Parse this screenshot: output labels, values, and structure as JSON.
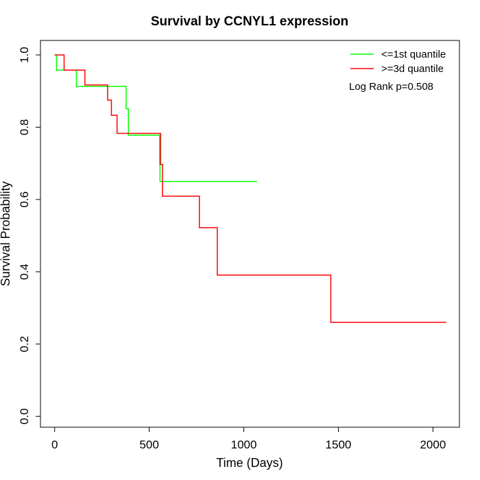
{
  "chart_data": {
    "type": "line",
    "title": "Survival by CCNYL1 expression",
    "xlabel": "Time (Days)",
    "ylabel": "Survival Probability",
    "xlim": [
      -75,
      2140
    ],
    "ylim": [
      -0.03,
      1.04
    ],
    "x_ticks": [
      0,
      500,
      1000,
      1500,
      2000
    ],
    "y_ticks": [
      0.0,
      0.2,
      0.4,
      0.6,
      0.8,
      1.0
    ],
    "x_tick_labels": [
      "0",
      "500",
      "1000",
      "1500",
      "2000"
    ],
    "y_tick_labels": [
      "0.0",
      "0.2",
      "0.4",
      "0.6",
      "0.8",
      "1.0"
    ],
    "grid": false,
    "legend_position": "top-right",
    "annotation": "Log Rank p=0.508",
    "series": [
      {
        "name": "<=1st quantile",
        "color": "#00ff00",
        "steps": [
          [
            0,
            1.0
          ],
          [
            10,
            0.958
          ],
          [
            115,
            0.913
          ],
          [
            375,
            0.913
          ],
          [
            378,
            0.851
          ],
          [
            390,
            0.778
          ],
          [
            553,
            0.778
          ],
          [
            555,
            0.697
          ],
          [
            557,
            0.65
          ],
          [
            1070,
            0.65
          ]
        ]
      },
      {
        "name": ">=3d quantile",
        "color": "#ff0000",
        "steps": [
          [
            0,
            1.0
          ],
          [
            50,
            0.958
          ],
          [
            160,
            0.917
          ],
          [
            280,
            0.875
          ],
          [
            300,
            0.833
          ],
          [
            330,
            0.783
          ],
          [
            555,
            0.783
          ],
          [
            560,
            0.697
          ],
          [
            570,
            0.609
          ],
          [
            765,
            0.522
          ],
          [
            860,
            0.391
          ],
          [
            1460,
            0.26
          ],
          [
            2070,
            0.26
          ]
        ]
      }
    ]
  }
}
